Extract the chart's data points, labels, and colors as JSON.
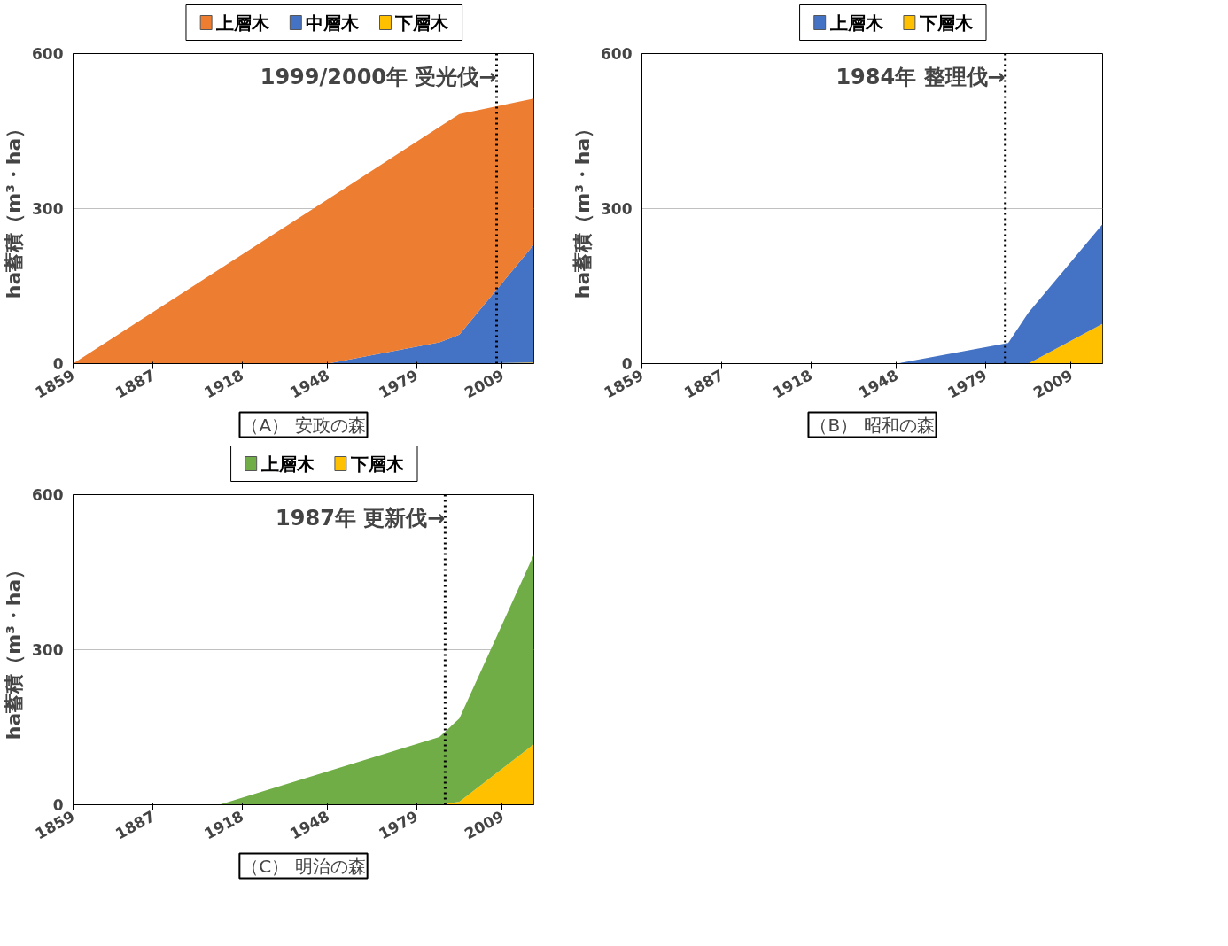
{
  "chart_data": [
    {
      "type": "area",
      "stacked": true,
      "xlabel": "（A） 安政の森",
      "ylabel": "ha蓄積（m³・ha）",
      "x": [
        1859,
        1948,
        1987,
        1994,
        2020
      ],
      "xlim": [
        1859,
        2020
      ],
      "xticks": [
        1859,
        1887,
        1918,
        1948,
        1979,
        2009
      ],
      "ylim": [
        0,
        600
      ],
      "yticks": [
        0,
        300,
        600
      ],
      "grid": "y",
      "legend": "top",
      "series": [
        {
          "name": "下層木",
          "color": "#ffc000",
          "values": [
            0,
            0,
            0,
            0,
            2
          ]
        },
        {
          "name": "中層木",
          "color": "#4472c4",
          "values": [
            0,
            0,
            41,
            56,
            228
          ]
        },
        {
          "name": "上層木",
          "color": "#ed7d31",
          "values": [
            0,
            318,
            417,
            427,
            283
          ]
        }
      ],
      "ref_lines": [
        {
          "axis": "x",
          "value": 2007,
          "label": "1999/2000年 受光伐→",
          "line_style": "dotted",
          "color": "#000000"
        }
      ]
    },
    {
      "type": "area",
      "stacked": true,
      "xlabel": "（B） 昭和の森",
      "ylabel": "ha蓄積（m³・ha）",
      "x": [
        1859,
        1948,
        1987,
        1994,
        2020
      ],
      "xlim": [
        1859,
        2020
      ],
      "xticks": [
        1859,
        1887,
        1918,
        1948,
        1979,
        2009
      ],
      "ylim": [
        0,
        600
      ],
      "yticks": [
        0,
        300,
        600
      ],
      "grid": "y",
      "legend": "top",
      "series": [
        {
          "name": "下層木",
          "color": "#ffc000",
          "values": [
            0,
            0,
            0,
            0,
            77
          ]
        },
        {
          "name": "上層木",
          "color": "#4472c4",
          "values": [
            0,
            0,
            40,
            98,
            193
          ]
        }
      ],
      "ref_lines": [
        {
          "axis": "x",
          "value": 1986,
          "label": "1984年 整理伐→",
          "line_style": "dotted",
          "color": "#000000"
        }
      ]
    },
    {
      "type": "area",
      "stacked": true,
      "xlabel": "（C） 明治の森",
      "ylabel": "ha蓄積（m³・ha）",
      "x": [
        1859,
        1910,
        1987,
        1994,
        2020
      ],
      "xlim": [
        1859,
        2020
      ],
      "xticks": [
        1859,
        1887,
        1918,
        1948,
        1979,
        2009
      ],
      "ylim": [
        0,
        600
      ],
      "yticks": [
        0,
        300,
        600
      ],
      "grid": "y",
      "legend": "top",
      "series": [
        {
          "name": "下層木",
          "color": "#ffc000",
          "values": [
            0,
            0,
            0,
            6,
            117
          ]
        },
        {
          "name": "上層木",
          "color": "#70ad47",
          "values": [
            0,
            0,
            131,
            161,
            367
          ]
        }
      ],
      "ref_lines": [
        {
          "axis": "x",
          "value": 1989,
          "label": "1987年 更新伐→",
          "line_style": "dotted",
          "color": "#000000"
        }
      ]
    }
  ]
}
